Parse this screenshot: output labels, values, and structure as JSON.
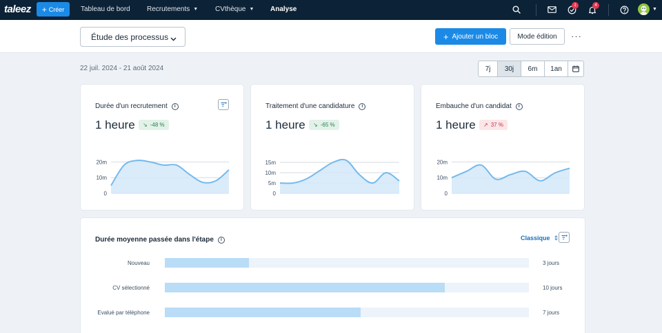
{
  "nav": {
    "logo": "taleez",
    "create_label": "Créer",
    "links": [
      {
        "label": "Tableau de bord",
        "caret": false,
        "active": false
      },
      {
        "label": "Recrutements",
        "caret": true,
        "active": false
      },
      {
        "label": "CVthèque",
        "caret": true,
        "active": false
      },
      {
        "label": "Analyse",
        "caret": false,
        "active": true
      }
    ],
    "tasks_badge": "1",
    "notifications_badge": "4"
  },
  "header": {
    "process_select": "Étude des processus",
    "add_block_label": "Ajouter un bloc",
    "edit_mode_label": "Mode édition",
    "more_label": "···"
  },
  "date_range": "22 juil. 2024 - 21 août 2024",
  "periods": [
    "7j",
    "30j",
    "6m",
    "1an"
  ],
  "active_period": "30j",
  "cards": [
    {
      "title": "Durée d'un recrutement",
      "metric": "1 heure",
      "trend": "-48 %",
      "trend_direction": "down",
      "chart_data": {
        "type": "area",
        "title": "Durée d'un recrutement",
        "y_ticks": [
          "0",
          "10m",
          "20m"
        ],
        "ylim": [
          0,
          25
        ],
        "values": [
          5,
          18,
          21,
          20,
          18,
          18,
          12,
          7,
          8,
          15
        ]
      }
    },
    {
      "title": "Traitement d'une candidature",
      "metric": "1 heure",
      "trend": "-65 %",
      "trend_direction": "down",
      "chart_data": {
        "type": "area",
        "title": "Traitement d'une candidature",
        "y_ticks": [
          "0",
          "5m",
          "10m",
          "15m"
        ],
        "ylim": [
          0,
          18
        ],
        "values": [
          5,
          5,
          7,
          11,
          15,
          16,
          9,
          5,
          10,
          6
        ]
      }
    },
    {
      "title": "Embauche d'un candidat",
      "metric": "1 heure",
      "trend": "37 %",
      "trend_direction": "up",
      "chart_data": {
        "type": "area",
        "title": "Embauche d'un candidat",
        "y_ticks": [
          "0",
          "10m",
          "20m"
        ],
        "ylim": [
          0,
          25
        ],
        "values": [
          10,
          14,
          18,
          9,
          12,
          14,
          8,
          13,
          16
        ]
      }
    }
  ],
  "stage_card": {
    "title": "Durée moyenne passée dans l'étape",
    "mode_label": "Classique",
    "chart_data": {
      "type": "bar",
      "orientation": "horizontal",
      "title": "Durée moyenne passée dans l'étape",
      "categories": [
        "Nouveau",
        "CV sélectionné",
        "Evalué par téléphone"
      ],
      "values": [
        3,
        10,
        7
      ],
      "value_labels": [
        "3 jours",
        "10 jours",
        "7 jours"
      ],
      "xlim": [
        0,
        13
      ]
    }
  },
  "colors": {
    "nav_bg": "#0c2236",
    "accent": "#1b8ae6",
    "chart_line": "#74b9ec",
    "chart_fill": "#d3e8f9"
  }
}
